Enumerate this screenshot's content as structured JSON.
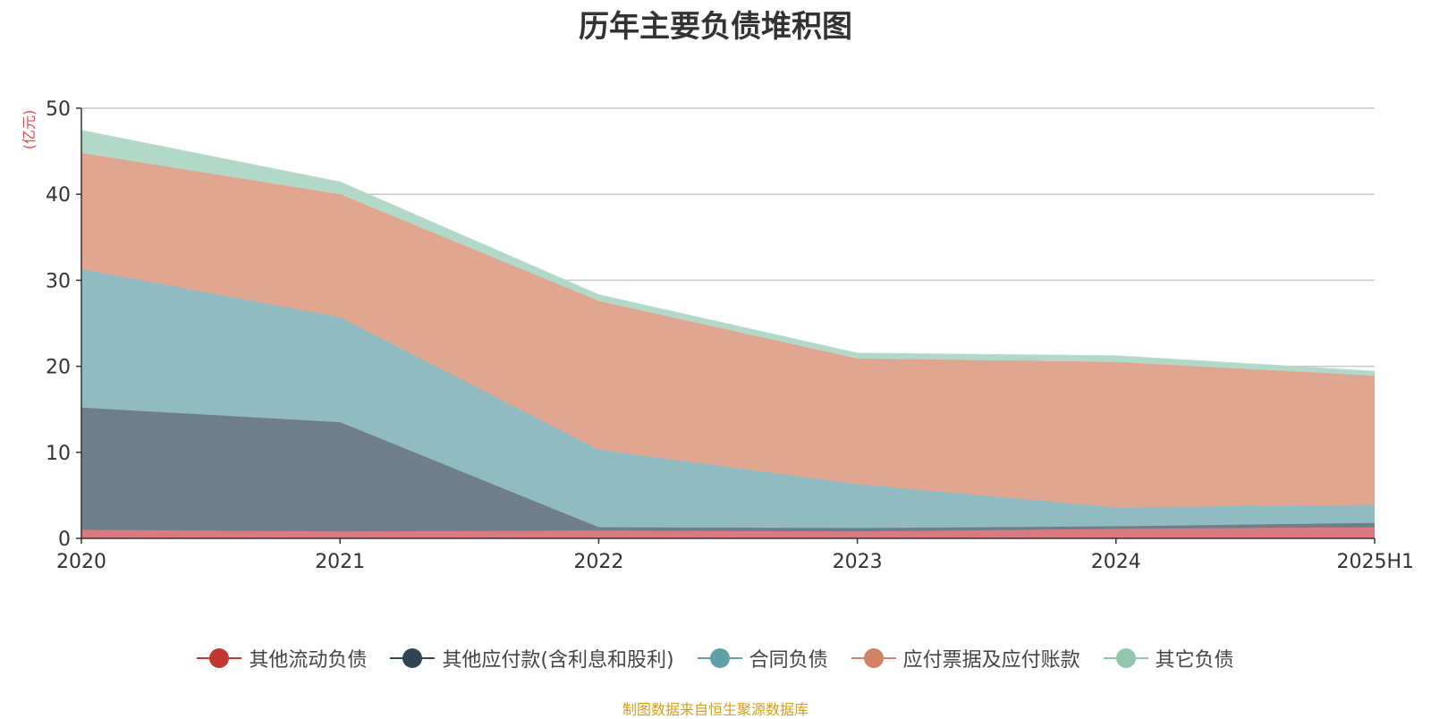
{
  "chart_data": {
    "type": "area",
    "stacked": true,
    "title": "历年主要负债堆积图",
    "ylabel": "(亿元)",
    "xlabel": "",
    "categories": [
      "2020",
      "2021",
      "2022",
      "2023",
      "2024",
      "2025H1"
    ],
    "ylim": [
      0,
      50
    ],
    "yticks": [
      0,
      10,
      20,
      30,
      40,
      50
    ],
    "grid": true,
    "legend_position": "bottom",
    "series": [
      {
        "name": "其他流动负债",
        "color": "#c23531",
        "fill": "#d87a80",
        "values": [
          1.0,
          0.8,
          0.9,
          0.8,
          1.1,
          1.3
        ]
      },
      {
        "name": "其他应付款(含利息和股利)",
        "color": "#2f4554",
        "fill": "#6e7e8a",
        "values": [
          14.2,
          12.7,
          0.4,
          0.4,
          0.3,
          0.5
        ]
      },
      {
        "name": "合同负债",
        "color": "#61a0a8",
        "fill": "#91bbc2",
        "values": [
          16.1,
          12.2,
          9.0,
          5.1,
          2.2,
          2.1
        ]
      },
      {
        "name": "应付票据及应付账款",
        "color": "#d48265",
        "fill": "#e0a690",
        "values": [
          13.5,
          14.3,
          17.3,
          14.6,
          16.9,
          15.0
        ]
      },
      {
        "name": "其它负债",
        "color": "#91c7ae",
        "fill": "#b2d9c8",
        "values": [
          2.6,
          1.4,
          0.7,
          0.6,
          0.7,
          0.5
        ]
      }
    ]
  },
  "source_note": "制图数据来自恒生聚源数据库"
}
